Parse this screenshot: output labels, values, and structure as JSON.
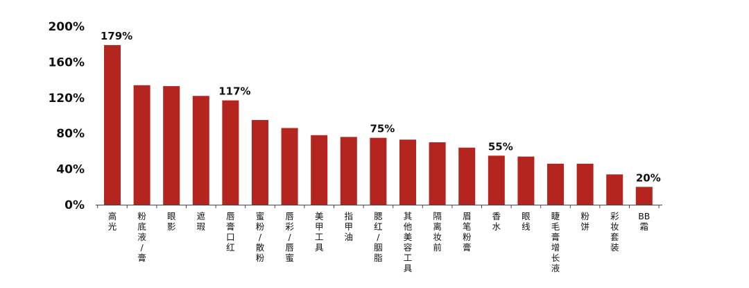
{
  "chart_data": {
    "type": "bar",
    "title": "",
    "xlabel": "",
    "ylabel": "",
    "ylim": [
      0,
      200
    ],
    "y_ticks": [
      0,
      40,
      80,
      120,
      160,
      200
    ],
    "y_tick_labels": [
      "0%",
      "40%",
      "80%",
      "120%",
      "160%",
      "200%"
    ],
    "grid": false,
    "bar_color": "#b52520",
    "categories": [
      "高光",
      "粉底液/膏",
      "眼影",
      "遮瑕",
      "唇膏口红",
      "蜜粉/散粉",
      "唇彩/唇蜜",
      "美甲工具",
      "指甲油",
      "腮红/胭脂",
      "其他美容工具",
      "隔离妆前",
      "眉笔粉膏",
      "香水",
      "眼线",
      "睫毛膏增长液",
      "粉饼",
      "彩妆套装",
      "BB霜"
    ],
    "x_tick_lines": [
      [
        "高",
        "光"
      ],
      [
        "粉",
        "底",
        "液",
        "/",
        "膏"
      ],
      [
        "眼",
        "影"
      ],
      [
        "遮",
        "瑕"
      ],
      [
        "唇",
        "膏",
        "口",
        "红"
      ],
      [
        "蜜",
        "粉",
        "/",
        "散",
        "粉"
      ],
      [
        "唇",
        "彩",
        "/",
        "唇",
        "蜜"
      ],
      [
        "美",
        "甲",
        "工",
        "具"
      ],
      [
        "指",
        "甲",
        "油"
      ],
      [
        "腮",
        "红",
        "/",
        "胭",
        "脂"
      ],
      [
        "其",
        "他",
        "美",
        "容",
        "工",
        "具"
      ],
      [
        "隔",
        "离",
        "妆",
        "前"
      ],
      [
        "眉",
        "笔",
        "粉",
        "膏"
      ],
      [
        "香",
        "水"
      ],
      [
        "眼",
        "线"
      ],
      [
        "睫",
        "毛",
        "膏",
        "增",
        "长",
        "液"
      ],
      [
        "粉",
        "饼"
      ],
      [
        "彩",
        "妆",
        "套",
        "装"
      ],
      [
        "BB",
        "霜"
      ]
    ],
    "values": [
      179,
      134,
      133,
      122,
      117,
      95,
      86,
      78,
      76,
      75,
      73,
      70,
      64,
      55,
      54,
      46,
      46,
      34,
      20
    ],
    "data_labels": [
      {
        "index": 0,
        "text": "179%"
      },
      {
        "index": 4,
        "text": "117%"
      },
      {
        "index": 9,
        "text": "75%"
      },
      {
        "index": 13,
        "text": "55%"
      },
      {
        "index": 18,
        "text": "20%"
      }
    ]
  }
}
